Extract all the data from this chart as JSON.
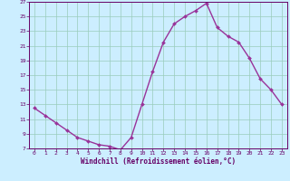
{
  "x": [
    0,
    1,
    2,
    3,
    4,
    5,
    6,
    7,
    8,
    9,
    10,
    11,
    12,
    13,
    14,
    15,
    16,
    17,
    18,
    19,
    20,
    21,
    22,
    23
  ],
  "y": [
    12.5,
    11.5,
    10.5,
    9.5,
    8.5,
    8.0,
    7.5,
    7.3,
    6.8,
    8.5,
    13.0,
    17.5,
    21.5,
    24.0,
    25.0,
    25.8,
    26.8,
    23.5,
    22.3,
    21.5,
    19.3,
    16.5,
    15.0,
    13.0
  ],
  "line_color": "#993399",
  "marker_color": "#993399",
  "bg_color": "#cceeff",
  "grid_color": "#99ccbb",
  "xlabel": "Windchill (Refroidissement éolien,°C)",
  "ylim": [
    7,
    27
  ],
  "xlim": [
    -0.5,
    23.5
  ],
  "yticks": [
    7,
    9,
    11,
    13,
    15,
    17,
    19,
    21,
    23,
    25,
    27
  ],
  "xticks": [
    0,
    1,
    2,
    3,
    4,
    5,
    6,
    7,
    8,
    9,
    10,
    11,
    12,
    13,
    14,
    15,
    16,
    17,
    18,
    19,
    20,
    21,
    22,
    23
  ],
  "axis_color": "#660066",
  "xlabel_color": "#660066",
  "tick_color": "#660066"
}
